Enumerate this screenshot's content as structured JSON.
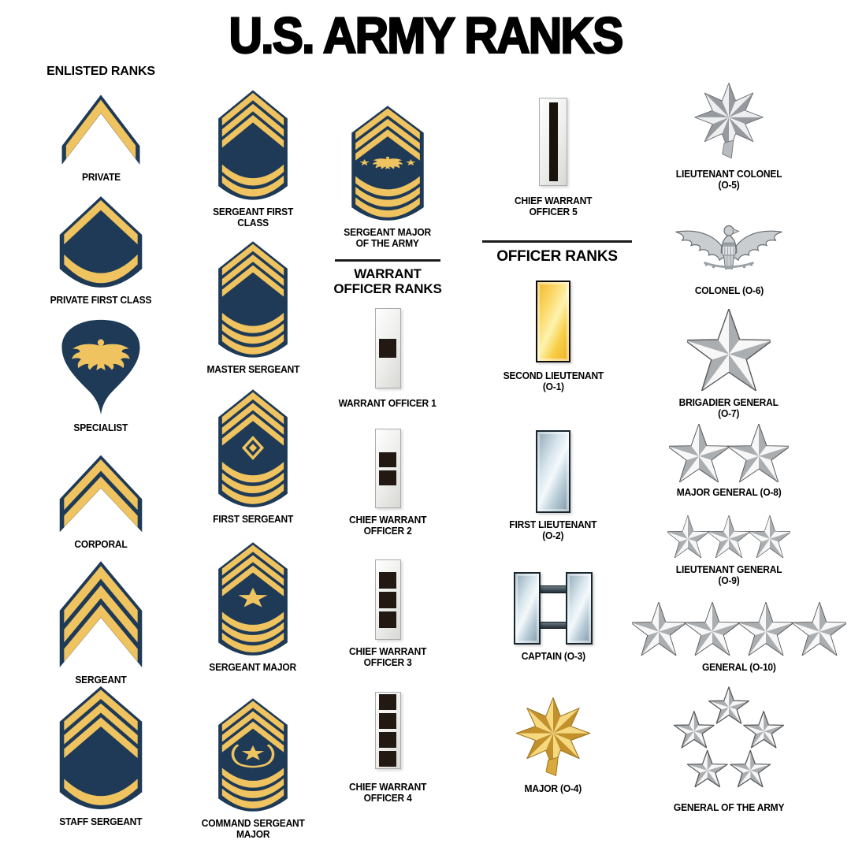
{
  "title": "U.S. ARMY RANKS",
  "colors": {
    "gold": "#EFC35F",
    "navy": "#1E3A57",
    "square_black": "#211912",
    "stripe_black": "#1A120C",
    "star_light": "#F7F7F7",
    "star_dark": "#ABAEB0",
    "star_edge": "#55575A",
    "metal": "#C9CDD0",
    "metal_dark": "#63696E",
    "metal_mid": "#9AA1A6",
    "oak_gold_light": "#F6D87E",
    "oak_gold_dark": "#C3912B",
    "oak_gold_mid": "#D8A93C",
    "oak_gold_edge": "#9A7420",
    "oak_silver_light": "#EDEEF0",
    "oak_silver_dark": "#96999D",
    "oak_silver_mid": "#B9BCBF",
    "oak_silver_edge": "#6E7276"
  },
  "sections": {
    "enlisted": {
      "header": "ENLISTED RANKS"
    },
    "warrant": {
      "header": "WARRANT OFFICER RANKS"
    },
    "officer": {
      "header": "OFFICER RANKS"
    }
  },
  "ranks": {
    "private": {
      "label": "PRIVATE",
      "insignia": "one gold chevron on navy"
    },
    "private_first_class": {
      "label": "PRIVATE FIRST CLASS",
      "insignia": "one gold chevron above one rocker"
    },
    "specialist": {
      "label": "SPECIALIST",
      "insignia": "gold eagle on navy spade-shaped patch"
    },
    "corporal": {
      "label": "CORPORAL",
      "insignia": "two gold chevrons"
    },
    "sergeant": {
      "label": "SERGEANT",
      "insignia": "three gold chevrons"
    },
    "staff_sergeant": {
      "label": "STAFF SERGEANT",
      "insignia": "three chevrons above one rocker"
    },
    "sergeant_first_class": {
      "label": "SERGEANT FIRST\nCLASS",
      "insignia": "three chevrons above two rockers"
    },
    "master_sergeant": {
      "label": "MASTER SERGEANT",
      "insignia": "three chevrons above three rockers"
    },
    "first_sergeant": {
      "label": "FIRST SERGEANT",
      "insignia": "three chevrons, diamond device, three rockers"
    },
    "sergeant_major": {
      "label": "SERGEANT MAJOR",
      "insignia": "three chevrons, star device, three rockers"
    },
    "command_sergeant_major": {
      "label": "COMMAND SERGEANT\nMAJOR",
      "insignia": "three chevrons, wreathed star device, three rockers"
    },
    "sergeant_major_of_the_army": {
      "label": "SERGEANT MAJOR\nOF THE ARMY",
      "insignia": "three chevrons, eagle with two stars device, three rockers"
    },
    "warrant_officer_1": {
      "label": "WARRANT OFFICER 1",
      "insignia": "silver bar with one black square"
    },
    "chief_warrant_officer_2": {
      "label": "CHIEF WARRANT\nOFFICER 2",
      "insignia": "silver bar with two black squares"
    },
    "chief_warrant_officer_3": {
      "label": "CHIEF WARRANT\nOFFICER 3",
      "insignia": "silver bar with three black squares"
    },
    "chief_warrant_officer_4": {
      "label": "CHIEF WARRANT\nOFFICER 4",
      "insignia": "silver bar with four black squares"
    },
    "chief_warrant_officer_5": {
      "label": "CHIEF WARRANT\nOFFICER 5",
      "insignia": "silver bar with single black vertical stripe"
    },
    "second_lieutenant": {
      "label": "SECOND LIEUTENANT\n(O-1)",
      "insignia": "one gold bar"
    },
    "first_lieutenant": {
      "label": "FIRST LIEUTENANT\n(O-2)",
      "insignia": "one silver bar"
    },
    "captain": {
      "label": "CAPTAIN (O-3)",
      "insignia": "two connected silver bars"
    },
    "major": {
      "label": "MAJOR (O-4)",
      "insignia": "gold oak leaf"
    },
    "lieutenant_colonel": {
      "label": "LIEUTENANT COLONEL\n(O-5)",
      "insignia": "silver oak leaf"
    },
    "colonel": {
      "label": "COLONEL (O-6)",
      "insignia": "silver eagle"
    },
    "brigadier_general": {
      "label": "BRIGADIER GENERAL\n(O-7)",
      "insignia": "one silver star"
    },
    "major_general": {
      "label": "MAJOR GENERAL (O-8)",
      "insignia": "two silver stars"
    },
    "lieutenant_general": {
      "label": "LIEUTENANT GENERAL\n(O-9)",
      "insignia": "three silver stars"
    },
    "general": {
      "label": "GENERAL (O-10)",
      "insignia": "four silver stars"
    },
    "general_of_the_army": {
      "label": "GENERAL OF THE ARMY",
      "insignia": "five silver stars arranged in a pentagon"
    }
  }
}
